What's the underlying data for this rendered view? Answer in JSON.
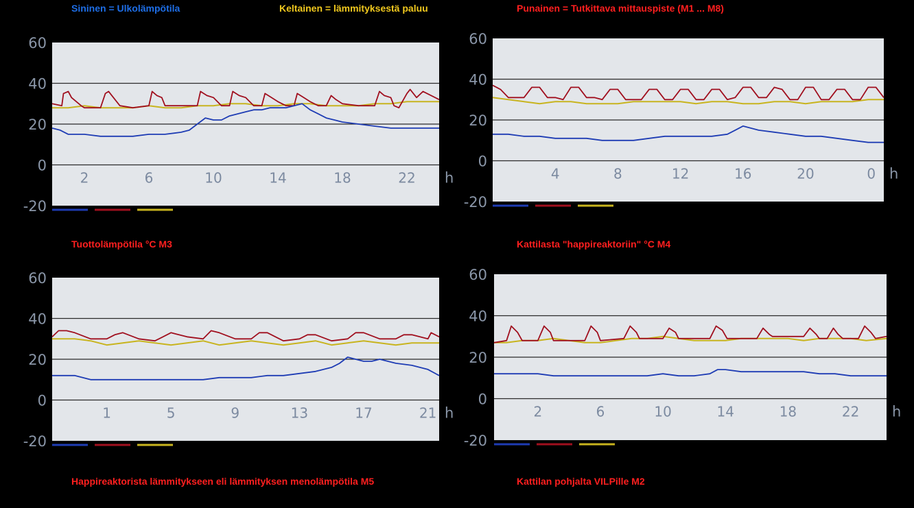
{
  "legend": {
    "blue": "Sininen = Ulkolämpötila",
    "yellow": "Keltainen = lämmityksestä paluu",
    "red": "Punainen = Tutkittava mittauspiste (M1 ... M8)"
  },
  "colors": {
    "blue": "#1e3cb4",
    "red": "#a00f1e",
    "yellow": "#c8b41e",
    "legend_blue": "#1e6ee6",
    "legend_yellow": "#f0c81e",
    "legend_red": "#ff1f1f"
  },
  "chart_data": [
    {
      "type": "line",
      "title": "Tuottolämpötila °C M3",
      "ylim": [
        -20,
        60
      ],
      "yticks": [
        "60",
        "40",
        "20",
        "0",
        "-20"
      ],
      "xlabel": "h",
      "xticks": [
        "2",
        "6",
        "10",
        "14",
        "18",
        "22"
      ],
      "xtick_pos": [
        2,
        6,
        10,
        14,
        18,
        22
      ],
      "xlim": [
        0,
        24
      ],
      "series": [
        {
          "name": "Ulkolämpötila",
          "color": "blue",
          "x": [
            0,
            0.5,
            1,
            2,
            3,
            4,
            5,
            6,
            7,
            8,
            8.5,
            9,
            9.5,
            10,
            10.5,
            11,
            11.5,
            12,
            12.5,
            13,
            13.5,
            14,
            14.5,
            15,
            15.5,
            16,
            16.5,
            17,
            17.5,
            18,
            19,
            20,
            21,
            22,
            23,
            24
          ],
          "values": [
            18,
            17,
            15,
            15,
            14,
            14,
            14,
            15,
            15,
            16,
            17,
            20,
            23,
            22,
            22,
            24,
            25,
            26,
            27,
            27,
            28,
            28,
            28,
            29,
            30,
            27,
            25,
            23,
            22,
            21,
            20,
            19,
            18,
            18,
            18,
            18
          ]
        },
        {
          "name": "Lämmityksestä paluu",
          "color": "yellow",
          "x": [
            0,
            1,
            2,
            3,
            4,
            5,
            6,
            7,
            8,
            9,
            10,
            11,
            12,
            13,
            14,
            15,
            16,
            17,
            18,
            19,
            20,
            21,
            22,
            23,
            24
          ],
          "values": [
            28,
            28,
            29,
            28,
            28,
            28,
            29,
            28,
            28,
            29,
            29,
            30,
            30,
            29,
            29,
            30,
            30,
            29,
            29,
            29,
            30,
            30,
            31,
            31,
            31
          ]
        },
        {
          "name": "Tutkittava mittauspiste",
          "color": "red",
          "x": [
            0,
            0.6,
            0.7,
            1.0,
            1.2,
            1.8,
            2,
            2.5,
            3,
            3.3,
            3.5,
            3.8,
            4.2,
            5,
            6,
            6.2,
            6.5,
            6.8,
            7.0,
            7.5,
            8,
            9,
            9.2,
            9.6,
            10.0,
            10.5,
            11,
            11.2,
            11.6,
            12.0,
            12.5,
            13,
            13.2,
            13.6,
            14.0,
            14.5,
            15,
            15.2,
            15.6,
            16,
            16.5,
            17,
            17.3,
            17.6,
            18,
            19,
            20,
            20.3,
            20.6,
            21,
            21.2,
            21.5,
            22,
            22.2,
            22.6,
            23,
            24
          ],
          "values": [
            30,
            29,
            35,
            36,
            33,
            29,
            28,
            28,
            28,
            35,
            36,
            33,
            29,
            28,
            29,
            36,
            34,
            33,
            29,
            29,
            29,
            29,
            36,
            34,
            33,
            29,
            29,
            36,
            34,
            33,
            29,
            29,
            35,
            33,
            31,
            29,
            29,
            35,
            33,
            31,
            29,
            29,
            34,
            32,
            30,
            29,
            29,
            36,
            34,
            33,
            29,
            28,
            35,
            37,
            33,
            36,
            32
          ]
        }
      ]
    },
    {
      "type": "line",
      "title": "Kattilasta \"happireaktoriin\" °C M4",
      "ylim": [
        -20,
        60
      ],
      "yticks": [
        "60",
        "40",
        "20",
        "0",
        "-20"
      ],
      "xlabel": "h",
      "xticks": [
        "4",
        "8",
        "12",
        "16",
        "20",
        "0"
      ],
      "xtick_pos": [
        4,
        8,
        12,
        16,
        20,
        24.2
      ],
      "xlim": [
        0,
        25
      ],
      "series": [
        {
          "name": "Ulkolämpötila",
          "color": "blue",
          "x": [
            0,
            1,
            2,
            3,
            4,
            5,
            6,
            7,
            8,
            9,
            10,
            11,
            12,
            13,
            14,
            15,
            15.5,
            16,
            16.5,
            17,
            18,
            19,
            20,
            21,
            22,
            23,
            24,
            25
          ],
          "values": [
            13,
            13,
            12,
            12,
            11,
            11,
            11,
            10,
            10,
            10,
            11,
            12,
            12,
            12,
            12,
            13,
            15,
            17,
            16,
            15,
            14,
            13,
            12,
            12,
            11,
            10,
            9,
            9
          ]
        },
        {
          "name": "Lämmityksestä paluu",
          "color": "yellow",
          "x": [
            0,
            1,
            2,
            3,
            4,
            5,
            6,
            7,
            8,
            9,
            10,
            11,
            12,
            13,
            14,
            15,
            16,
            17,
            18,
            19,
            20,
            21,
            22,
            23,
            24,
            25
          ],
          "values": [
            31,
            30,
            29,
            28,
            29,
            29,
            28,
            28,
            28,
            29,
            29,
            29,
            29,
            28,
            29,
            29,
            28,
            28,
            29,
            29,
            28,
            29,
            29,
            29,
            30,
            30
          ]
        },
        {
          "name": "Tutkittava mittauspiste",
          "color": "red",
          "x": [
            0,
            0.5,
            1,
            1.5,
            2,
            2.5,
            3,
            3.5,
            4,
            4.5,
            5,
            5.5,
            6,
            6.5,
            7,
            7.5,
            8,
            8.5,
            9,
            9.5,
            10,
            10.5,
            11,
            11.5,
            12,
            12.5,
            13,
            13.5,
            14,
            14.5,
            15,
            15.5,
            16,
            16.5,
            17,
            17.5,
            18,
            18.5,
            19,
            19.5,
            20,
            20.5,
            21,
            21.5,
            22,
            22.5,
            23,
            23.5,
            24,
            24.5,
            25
          ],
          "values": [
            37,
            35,
            31,
            31,
            31,
            36,
            36,
            31,
            31,
            30,
            36,
            36,
            31,
            31,
            30,
            35,
            35,
            30,
            30,
            30,
            35,
            35,
            30,
            30,
            35,
            35,
            30,
            30,
            35,
            35,
            30,
            31,
            36,
            36,
            31,
            31,
            36,
            35,
            30,
            30,
            36,
            36,
            30,
            30,
            35,
            35,
            30,
            30,
            36,
            36,
            31
          ]
        }
      ]
    },
    {
      "type": "line",
      "title": "Happireaktorista lämmitykseen eli lämmityksen menolämpötila M5",
      "ylim": [
        -20,
        60
      ],
      "yticks": [
        "60",
        "40",
        "20",
        "0",
        "-20"
      ],
      "xlabel": "h",
      "xticks": [
        "1",
        "5",
        "9",
        "13",
        "17",
        "21"
      ],
      "xtick_pos": [
        1,
        5,
        9,
        13,
        17,
        21
      ],
      "xlim": [
        -2.4,
        21.7
      ],
      "series": [
        {
          "name": "Ulkolämpötila",
          "color": "blue",
          "x": [
            -2.4,
            -1,
            -0.5,
            0,
            1,
            2,
            3,
            4,
            5,
            6,
            7,
            8,
            9,
            10,
            11,
            12,
            13,
            14,
            15,
            15.5,
            16,
            16.5,
            17,
            17.5,
            18,
            19,
            20,
            21,
            21.7
          ],
          "values": [
            12,
            12,
            11,
            10,
            10,
            10,
            10,
            10,
            10,
            10,
            10,
            11,
            11,
            11,
            12,
            12,
            13,
            14,
            16,
            18,
            21,
            20,
            19,
            19,
            20,
            18,
            17,
            15,
            12
          ]
        },
        {
          "name": "Lämmityksestä paluu",
          "color": "yellow",
          "x": [
            -2.4,
            -1,
            0,
            1,
            2,
            3,
            4,
            5,
            6,
            7,
            8,
            9,
            10,
            11,
            12,
            13,
            14,
            15,
            16,
            17,
            18,
            19,
            20,
            21,
            21.7
          ],
          "values": [
            30,
            30,
            29,
            27,
            28,
            29,
            28,
            27,
            28,
            29,
            27,
            28,
            29,
            28,
            27,
            28,
            29,
            27,
            28,
            29,
            28,
            27,
            28,
            28,
            28
          ]
        },
        {
          "name": "Tutkittava mittauspiste",
          "color": "red",
          "x": [
            -2.4,
            -2,
            -1.5,
            -1,
            0,
            1,
            1.5,
            2,
            3,
            4,
            4.5,
            5,
            6,
            7,
            7.5,
            8,
            9,
            10,
            10.5,
            11,
            12,
            13,
            13.5,
            14,
            15,
            16,
            16.5,
            17,
            18,
            19,
            19.5,
            20,
            21,
            21.2,
            21.7
          ],
          "values": [
            31,
            34,
            34,
            33,
            30,
            30,
            32,
            33,
            30,
            29,
            31,
            33,
            31,
            30,
            34,
            33,
            30,
            30,
            33,
            33,
            29,
            30,
            32,
            32,
            29,
            30,
            33,
            33,
            30,
            30,
            32,
            32,
            30,
            33,
            31
          ]
        }
      ]
    },
    {
      "type": "line",
      "title": "Kattilan pohjalta VILPille M2",
      "ylim": [
        -20,
        60
      ],
      "yticks": [
        "60",
        "40",
        "20",
        "0",
        "-20"
      ],
      "xlabel": "h",
      "xticks": [
        "2",
        "6",
        "10",
        "14",
        "18",
        "22"
      ],
      "xtick_pos": [
        2,
        6,
        10,
        14,
        18,
        22
      ],
      "xlim": [
        -0.8,
        24.3
      ],
      "series": [
        {
          "name": "Ulkolämpötila",
          "color": "blue",
          "x": [
            -0.8,
            0,
            1,
            2,
            3,
            4,
            5,
            6,
            7,
            8,
            9,
            10,
            11,
            12,
            13,
            13.5,
            14,
            15,
            16,
            17,
            18,
            19,
            20,
            21,
            22,
            23,
            24.3
          ],
          "values": [
            12,
            12,
            12,
            12,
            11,
            11,
            11,
            11,
            11,
            11,
            11,
            12,
            11,
            11,
            12,
            14,
            14,
            13,
            13,
            13,
            13,
            13,
            12,
            12,
            11,
            11,
            11
          ]
        },
        {
          "name": "Lämmityksestä paluu",
          "color": "yellow",
          "x": [
            -0.8,
            0,
            1,
            2,
            3,
            4,
            5,
            6,
            7,
            8,
            9,
            10,
            11,
            12,
            13,
            14,
            15,
            16,
            17,
            18,
            19,
            20,
            21,
            22,
            23,
            24.3
          ],
          "values": [
            27,
            27,
            28,
            28,
            29,
            28,
            27,
            27,
            28,
            29,
            29,
            30,
            29,
            28,
            28,
            28,
            29,
            29,
            29,
            29,
            28,
            29,
            29,
            29,
            28,
            29
          ]
        },
        {
          "name": "Tutkittava mittauspiste",
          "color": "red",
          "x": [
            -0.8,
            0,
            0.3,
            0.7,
            1.0,
            1.5,
            2,
            2.4,
            2.8,
            3.0,
            5,
            5.4,
            5.8,
            6.0,
            7.5,
            7.9,
            8.3,
            8.5,
            10,
            10.4,
            10.8,
            11,
            13,
            13.4,
            13.8,
            14.1,
            16,
            16.4,
            16.8,
            17,
            18.5,
            19,
            19.4,
            19.8,
            20,
            20.5,
            20.9,
            21.2,
            21.5,
            22.5,
            22.9,
            23.3,
            23.6,
            24.3
          ],
          "values": [
            27,
            28,
            35,
            32,
            28,
            28,
            28,
            35,
            32,
            28,
            28,
            35,
            32,
            28,
            29,
            35,
            32,
            29,
            29,
            34,
            32,
            29,
            29,
            35,
            33,
            29,
            29,
            34,
            31,
            30,
            30,
            30,
            34,
            31,
            29,
            29,
            34,
            31,
            29,
            29,
            35,
            32,
            29,
            30
          ]
        }
      ]
    }
  ]
}
